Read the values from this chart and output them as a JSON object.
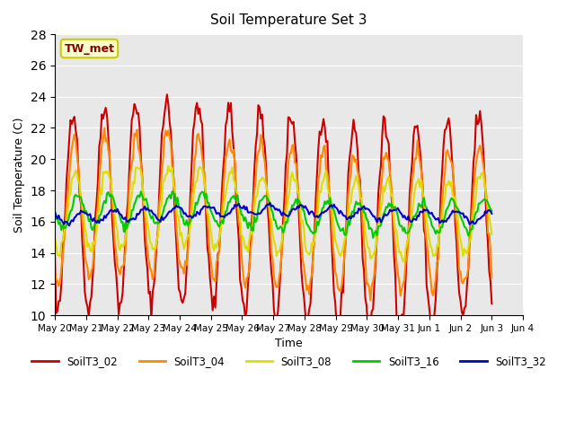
{
  "title": "Soil Temperature Set 3",
  "xlabel": "Time",
  "ylabel": "Soil Temperature (C)",
  "ylim": [
    10,
    28
  ],
  "yticks": [
    10,
    12,
    14,
    16,
    18,
    20,
    22,
    24,
    26,
    28
  ],
  "background_color": "#ffffff",
  "plot_bg_color": "#e8e8e8",
  "annotation_text": "TW_met",
  "annotation_color": "#8b0000",
  "annotation_bg": "#ffffcc",
  "annotation_border": "#cccc00",
  "series_colors": {
    "SoilT3_02": "#cc0000",
    "SoilT3_04": "#ff8800",
    "SoilT3_08": "#dddd00",
    "SoilT3_16": "#00cc00",
    "SoilT3_32": "#0000cc"
  },
  "line_width": 1.5,
  "legend_labels": [
    "SoilT3_02",
    "SoilT3_04",
    "SoilT3_08",
    "SoilT3_16",
    "SoilT3_32"
  ],
  "x_tick_labels": [
    "May 20",
    "May 21",
    "May 22",
    "May 23",
    "May 24",
    "May 25",
    "May 26",
    "May 27",
    "May 28",
    "May 29",
    "May 30",
    "May 31",
    "Jun 1",
    "Jun 2",
    "Jun 3",
    "Jun 4"
  ],
  "num_points": 336
}
